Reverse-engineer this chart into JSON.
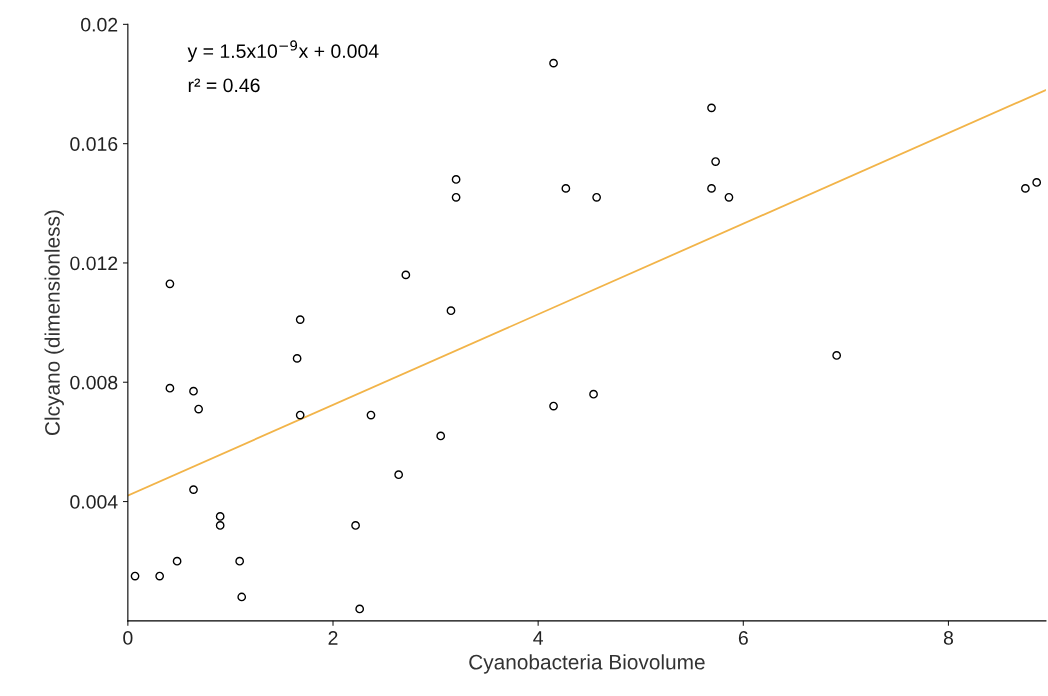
{
  "chart_data": {
    "type": "scatter",
    "xlabel": "Cyanobacteria Biovolume",
    "ylabel": "Clcyano (dimensionless)",
    "xlim": [
      0,
      8.95
    ],
    "ylim": [
      0,
      0.02
    ],
    "xticks": [
      0,
      2,
      4,
      6,
      8
    ],
    "yticks": [
      {
        "value": 0.004,
        "label": "0.004"
      },
      {
        "value": 0.008,
        "label": "0.008"
      },
      {
        "value": 0.012,
        "label": "0.012"
      },
      {
        "value": 0.016,
        "label": "0.016"
      },
      {
        "value": 0.02,
        "label": "0.02"
      }
    ],
    "grid": false,
    "legend": false,
    "marker": "circle",
    "annotations": [
      "y = 1.5x10$^{−9}$x + 0.004",
      "r² = 0.46"
    ],
    "series": [
      {
        "type": "scatter",
        "color": "#000000",
        "x": [
          0.07,
          0.31,
          0.48,
          0.41,
          0.41,
          0.64,
          0.69,
          0.64,
          0.9,
          0.9,
          1.09,
          1.11,
          1.65,
          1.68,
          1.68,
          2.22,
          2.26,
          2.37,
          2.64,
          2.71,
          3.05,
          3.15,
          3.2,
          3.2,
          4.15,
          4.15,
          4.27,
          4.54,
          4.57,
          5.69,
          5.73,
          5.69,
          5.86,
          6.91,
          8.75,
          8.86
        ],
        "values": [
          0.0015,
          0.0015,
          0.002,
          0.0113,
          0.0078,
          0.0077,
          0.0071,
          0.0044,
          0.0035,
          0.0032,
          0.002,
          0.0008,
          0.0088,
          0.0101,
          0.0069,
          0.0032,
          0.0004,
          0.0069,
          0.0049,
          0.0116,
          0.0062,
          0.0104,
          0.0148,
          0.0142,
          0.0187,
          0.0072,
          0.0145,
          0.0076,
          0.0142,
          0.0172,
          0.0154,
          0.0145,
          0.0142,
          0.0089,
          0.0145,
          0.0147
        ]
      },
      {
        "type": "line",
        "color": "#f2b449",
        "line_style": "solid",
        "marker": "none",
        "x": [
          0,
          8.95
        ],
        "values": [
          0.0042,
          0.0178
        ]
      }
    ]
  }
}
